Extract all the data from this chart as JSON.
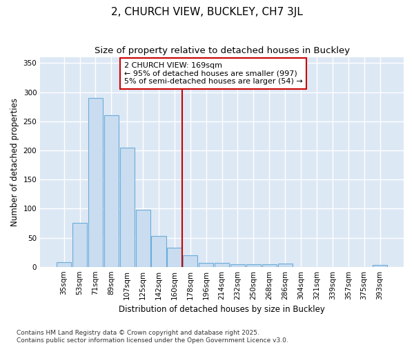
{
  "title": "2, CHURCH VIEW, BUCKLEY, CH7 3JL",
  "subtitle": "Size of property relative to detached houses in Buckley",
  "xlabel": "Distribution of detached houses by size in Buckley",
  "ylabel": "Number of detached properties",
  "footnote": "Contains HM Land Registry data © Crown copyright and database right 2025.\nContains public sector information licensed under the Open Government Licence v3.0.",
  "bar_labels": [
    "35sqm",
    "53sqm",
    "71sqm",
    "89sqm",
    "107sqm",
    "125sqm",
    "142sqm",
    "160sqm",
    "178sqm",
    "196sqm",
    "214sqm",
    "232sqm",
    "250sqm",
    "268sqm",
    "286sqm",
    "304sqm",
    "321sqm",
    "339sqm",
    "357sqm",
    "375sqm",
    "393sqm"
  ],
  "bar_values": [
    8,
    75,
    290,
    260,
    205,
    98,
    53,
    33,
    20,
    7,
    7,
    4,
    4,
    4,
    5,
    0,
    0,
    0,
    0,
    0,
    3
  ],
  "bar_color": "#c9dcf0",
  "bar_edgecolor": "#6aacd8",
  "ylim": [
    0,
    360
  ],
  "yticks": [
    0,
    50,
    100,
    150,
    200,
    250,
    300,
    350
  ],
  "vline_x": 7.5,
  "vline_color": "#cc0000",
  "annotation_text": "2 CHURCH VIEW: 169sqm\n← 95% of detached houses are smaller (997)\n5% of semi-detached houses are larger (54) →",
  "annotation_box_edgecolor": "#cc0000",
  "plot_bg_color": "#dde8f5",
  "fig_bg_color": "#ffffff",
  "grid_color": "#ffffff",
  "title_fontsize": 11,
  "subtitle_fontsize": 9.5,
  "label_fontsize": 8.5,
  "tick_fontsize": 7.5,
  "footnote_fontsize": 6.5,
  "annot_fontsize": 8
}
